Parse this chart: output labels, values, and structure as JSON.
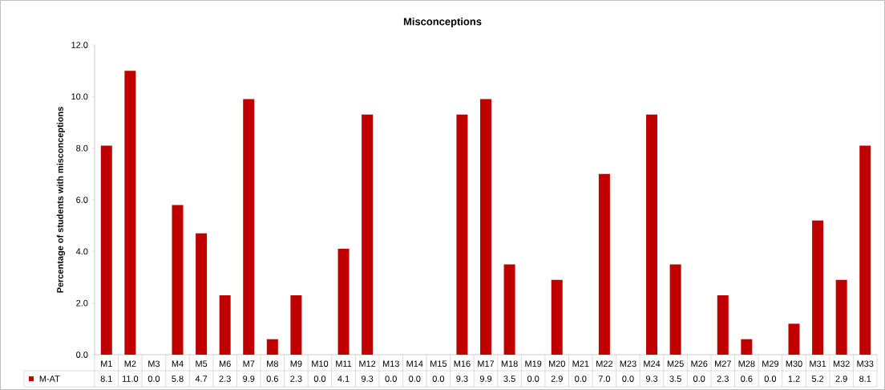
{
  "chart_data": {
    "type": "bar",
    "title": "Misconceptions",
    "ylabel": "Percentage of students with misconceptions",
    "categories": [
      "M1",
      "M2",
      "M3",
      "M4",
      "M5",
      "M6",
      "M7",
      "M8",
      "M9",
      "M10",
      "M11",
      "M12",
      "M13",
      "M14",
      "M15",
      "M16",
      "M17",
      "M18",
      "M19",
      "M20",
      "M21",
      "M22",
      "M23",
      "M24",
      "M25",
      "M26",
      "M27",
      "M28",
      "M29",
      "M30",
      "M31",
      "M32",
      "M33"
    ],
    "series": [
      {
        "name": "M-AT",
        "color": "#c00000",
        "values": [
          8.1,
          11.0,
          0.0,
          5.8,
          4.7,
          2.3,
          9.9,
          0.6,
          2.3,
          0.0,
          4.1,
          9.3,
          0.0,
          0.0,
          0.0,
          9.3,
          9.9,
          3.5,
          0.0,
          2.9,
          0.0,
          7.0,
          0.0,
          9.3,
          3.5,
          0.0,
          2.3,
          0.6,
          0.0,
          1.2,
          5.2,
          2.9,
          8.1
        ],
        "value_labels": [
          "8.1",
          "11.0",
          "0.0",
          "5.8",
          "4.7",
          "2.3",
          "9.9",
          "0.6",
          "2.3",
          "0.0",
          "4.1",
          "9.3",
          "0.0",
          "0.0",
          "0.0",
          "9.3",
          "9.9",
          "3.5",
          "0.0",
          "2.9",
          "0.0",
          "7.0",
          "0.0",
          "9.3",
          "3.5",
          "0.0",
          "2.3",
          "0.6",
          "0.0",
          "1.2",
          "5.2",
          "2.9",
          "8.1"
        ]
      }
    ],
    "ylim": [
      0,
      12
    ],
    "yticks": [
      {
        "value": 0,
        "label": "0.0"
      },
      {
        "value": 2,
        "label": "2.0"
      },
      {
        "value": 4,
        "label": "4.0"
      },
      {
        "value": 6,
        "label": "6.0"
      },
      {
        "value": 8,
        "label": "8.0"
      },
      {
        "value": 10,
        "label": "10.0"
      },
      {
        "value": 12,
        "label": "12.0"
      }
    ],
    "grid": false,
    "legend": "bottom"
  }
}
